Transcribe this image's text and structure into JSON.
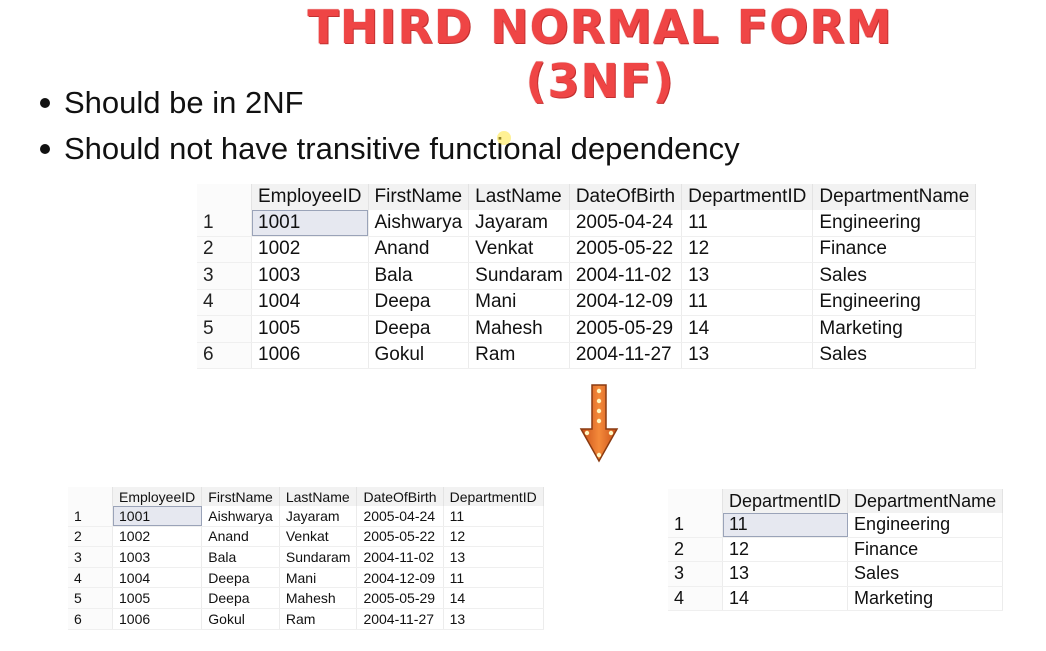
{
  "title": "THIRD NORMAL FORM (3NF)",
  "bullets": [
    "Should be in 2NF",
    "Should not have transitive functional dependency"
  ],
  "main_table": {
    "headers": [
      "",
      "EmployeeID",
      "FirstName",
      "LastName",
      "DateOfBirth",
      "DepartmentID",
      "DepartmentName"
    ],
    "rows": [
      [
        "1",
        "1001",
        "Aishwarya",
        "Jayaram",
        "2005-04-24",
        "11",
        "Engineering"
      ],
      [
        "2",
        "1002",
        "Anand",
        "Venkat",
        "2005-05-22",
        "12",
        "Finance"
      ],
      [
        "3",
        "1003",
        "Bala",
        "Sundaram",
        "2004-11-02",
        "13",
        "Sales"
      ],
      [
        "4",
        "1004",
        "Deepa",
        "Mani",
        "2004-12-09",
        "11",
        "Engineering"
      ],
      [
        "5",
        "1005",
        "Deepa",
        "Mahesh",
        "2005-05-29",
        "14",
        "Marketing"
      ],
      [
        "6",
        "1006",
        "Gokul",
        "Ram",
        "2004-11-27",
        "13",
        "Sales"
      ]
    ]
  },
  "employee_table": {
    "headers": [
      "",
      "EmployeeID",
      "FirstName",
      "LastName",
      "DateOfBirth",
      "DepartmentID"
    ],
    "rows": [
      [
        "1",
        "1001",
        "Aishwarya",
        "Jayaram",
        "2005-04-24",
        "11"
      ],
      [
        "2",
        "1002",
        "Anand",
        "Venkat",
        "2005-05-22",
        "12"
      ],
      [
        "3",
        "1003",
        "Bala",
        "Sundaram",
        "2004-11-02",
        "13"
      ],
      [
        "4",
        "1004",
        "Deepa",
        "Mani",
        "2004-12-09",
        "11"
      ],
      [
        "5",
        "1005",
        "Deepa",
        "Mahesh",
        "2005-05-29",
        "14"
      ],
      [
        "6",
        "1006",
        "Gokul",
        "Ram",
        "2004-11-27",
        "13"
      ]
    ]
  },
  "department_table": {
    "headers": [
      "",
      "DepartmentID",
      "DepartmentName"
    ],
    "rows": [
      [
        "1",
        "11",
        "Engineering"
      ],
      [
        "2",
        "12",
        "Finance"
      ],
      [
        "3",
        "13",
        "Sales"
      ],
      [
        "4",
        "14",
        "Marketing"
      ]
    ]
  },
  "colors": {
    "title": "#ef4545",
    "arrow": "#f07a2a",
    "selected_cell": "#e6e8f0"
  },
  "icons": {
    "arrow": "down-arrow-icon",
    "cursor": "mouse-cursor-icon"
  }
}
